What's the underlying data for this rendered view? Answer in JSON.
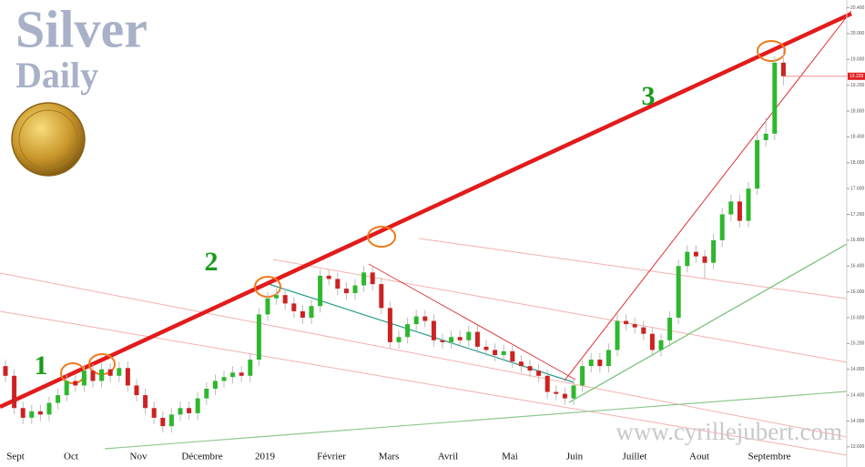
{
  "chart_data": {
    "type": "candlestick",
    "title": "Silver",
    "subtitle": "Daily",
    "annotations": [
      "1",
      "2",
      "3"
    ],
    "watermark": "www.cyrillejubert.com",
    "x_labels": [
      "Sept",
      "Oct",
      "Nov",
      "Décembre",
      "2019",
      "Février",
      "Mars",
      "Avril",
      "Mai",
      "Juin",
      "Juillet",
      "Aout",
      "Septembre"
    ],
    "up_color": "#2db82d",
    "down_color": "#cc2222",
    "open": [
      14.85,
      14.7,
      14.2,
      14.05,
      14.15,
      14.1,
      14.28,
      14.4,
      14.62,
      14.55,
      14.78,
      14.62,
      14.8,
      14.7,
      14.82,
      14.55,
      14.4,
      14.2,
      14.05,
      13.92,
      14.1,
      14.2,
      14.12,
      14.35,
      14.5,
      14.62,
      14.68,
      14.75,
      14.7,
      14.95,
      15.65,
      15.9,
      15.95,
      15.82,
      15.7,
      15.6,
      15.78,
      16.25,
      16.2,
      16.05,
      15.98,
      16.1,
      16.3,
      16.12,
      15.75,
      15.22,
      15.3,
      15.5,
      15.62,
      15.55,
      15.25,
      15.22,
      15.3,
      15.25,
      15.38,
      15.15,
      15.1,
      15.02,
      15.08,
      14.92,
      14.85,
      14.78,
      14.7,
      14.45,
      14.42,
      14.35,
      14.55,
      14.85,
      14.95,
      14.85,
      15.1,
      15.55,
      15.5,
      15.45,
      15.35,
      15.1,
      15.25,
      15.6,
      16.4,
      16.62,
      16.55,
      16.45,
      16.8,
      17.2,
      17.4,
      17.1,
      17.6,
      18.35,
      18.45,
      19.55
    ],
    "high": [
      14.95,
      14.8,
      14.3,
      14.25,
      14.25,
      14.38,
      14.5,
      14.72,
      14.72,
      14.88,
      14.88,
      14.9,
      14.9,
      14.92,
      14.92,
      14.65,
      14.5,
      14.3,
      14.15,
      14.2,
      14.3,
      14.3,
      14.45,
      14.6,
      14.72,
      14.78,
      14.85,
      14.85,
      15.05,
      15.75,
      16.0,
      16.05,
      16.05,
      15.92,
      15.8,
      15.88,
      16.35,
      16.35,
      16.3,
      16.15,
      16.2,
      16.4,
      16.4,
      16.22,
      15.85,
      15.4,
      15.6,
      15.72,
      15.72,
      15.65,
      15.35,
      15.4,
      15.4,
      15.48,
      15.48,
      15.25,
      15.2,
      15.18,
      15.18,
      15.02,
      14.95,
      14.88,
      14.8,
      14.55,
      14.52,
      14.65,
      14.95,
      15.05,
      15.05,
      15.2,
      15.65,
      15.65,
      15.6,
      15.55,
      15.45,
      15.35,
      15.7,
      16.5,
      16.72,
      16.72,
      16.65,
      16.9,
      17.3,
      17.5,
      17.5,
      17.7,
      18.45,
      18.7,
      19.65,
      19.75
    ],
    "low": [
      14.6,
      14.1,
      13.95,
      13.95,
      14.0,
      14.0,
      14.18,
      14.3,
      14.45,
      14.45,
      14.52,
      14.52,
      14.6,
      14.6,
      14.45,
      14.3,
      14.1,
      13.95,
      13.82,
      13.82,
      14.0,
      14.02,
      14.02,
      14.25,
      14.4,
      14.52,
      14.58,
      14.6,
      14.6,
      14.85,
      15.55,
      15.8,
      15.72,
      15.6,
      15.5,
      15.5,
      15.68,
      16.1,
      15.95,
      15.88,
      15.88,
      16.0,
      16.02,
      15.65,
      15.12,
      15.12,
      15.2,
      15.4,
      15.45,
      15.15,
      15.12,
      15.12,
      15.15,
      15.15,
      15.05,
      15.0,
      14.92,
      14.92,
      14.82,
      14.75,
      14.68,
      14.6,
      14.35,
      14.32,
      14.25,
      14.25,
      14.45,
      14.75,
      14.75,
      14.75,
      15.0,
      15.4,
      15.35,
      15.25,
      15.0,
      15.0,
      15.15,
      15.5,
      16.3,
      16.45,
      16.2,
      16.35,
      16.7,
      17.1,
      17.0,
      17.0,
      17.5,
      18.25,
      18.35,
      19.2
    ],
    "close": [
      14.7,
      14.2,
      14.05,
      14.15,
      14.1,
      14.28,
      14.4,
      14.62,
      14.55,
      14.78,
      14.62,
      14.8,
      14.7,
      14.82,
      14.55,
      14.4,
      14.2,
      14.05,
      13.92,
      14.1,
      14.2,
      14.12,
      14.35,
      14.5,
      14.62,
      14.68,
      14.75,
      14.7,
      14.95,
      15.65,
      15.9,
      15.95,
      15.82,
      15.7,
      15.6,
      15.78,
      16.25,
      16.2,
      16.05,
      15.98,
      16.1,
      16.3,
      16.12,
      15.75,
      15.22,
      15.3,
      15.5,
      15.62,
      15.55,
      15.25,
      15.22,
      15.3,
      15.25,
      15.38,
      15.15,
      15.1,
      15.02,
      15.08,
      14.92,
      14.85,
      14.78,
      14.7,
      14.45,
      14.42,
      14.35,
      14.55,
      14.85,
      14.95,
      14.85,
      15.1,
      15.55,
      15.5,
      15.45,
      15.35,
      15.1,
      15.25,
      15.6,
      16.4,
      16.62,
      16.55,
      16.45,
      16.8,
      17.2,
      17.4,
      17.1,
      17.6,
      18.35,
      18.45,
      19.55,
      19.339
    ],
    "last_price": 19.339,
    "ylim": [
      13.4,
      20.45
    ],
    "yticks": [
      {
        "value": 13.6,
        "label": "13.600"
      },
      {
        "value": 14.0,
        "label": "14.000"
      },
      {
        "value": 14.4,
        "label": "14.400"
      },
      {
        "value": 14.8,
        "label": "14.800"
      },
      {
        "value": 15.2,
        "label": "15.200"
      },
      {
        "value": 15.6,
        "label": "15.600"
      },
      {
        "value": 16.0,
        "label": "16.000"
      },
      {
        "value": 16.4,
        "label": "16.400"
      },
      {
        "value": 16.8,
        "label": "16.800"
      },
      {
        "value": 17.2,
        "label": "17.200"
      },
      {
        "value": 17.6,
        "label": "17.600"
      },
      {
        "value": 18.0,
        "label": "18.000"
      },
      {
        "value": 18.4,
        "label": "18.400"
      },
      {
        "value": 18.8,
        "label": "18.800"
      },
      {
        "value": 19.2,
        "label": "19.200"
      },
      {
        "value": 19.6,
        "label": "19.600"
      },
      {
        "value": 20.0,
        "label": "20.000"
      },
      {
        "value": 20.4,
        "label": "20.400"
      }
    ]
  }
}
